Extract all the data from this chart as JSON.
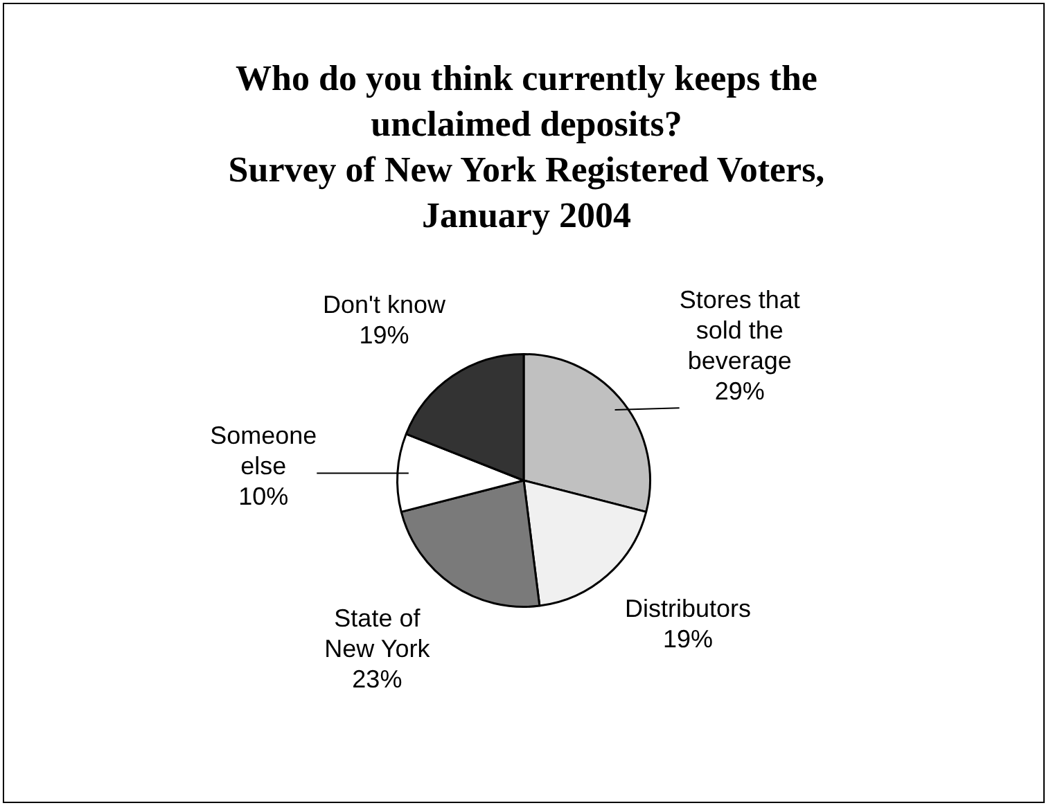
{
  "chart_data": {
    "type": "pie",
    "title": "Who do you think currently keeps the unclaimed deposits?",
    "subtitle": "Survey of New York Registered Voters, January 2004",
    "categories": [
      "Stores that sold the beverage",
      "Distributors",
      "State of New York",
      "Someone else",
      "Don't know"
    ],
    "values": [
      29,
      19,
      23,
      10,
      19
    ],
    "colors": [
      "#c0c0c0",
      "#f0f0f0",
      "#7a7a7a",
      "#ffffff",
      "#333333"
    ],
    "value_labels": [
      "29%",
      "19%",
      "23%",
      "10%",
      "19%"
    ],
    "legend": false
  }
}
